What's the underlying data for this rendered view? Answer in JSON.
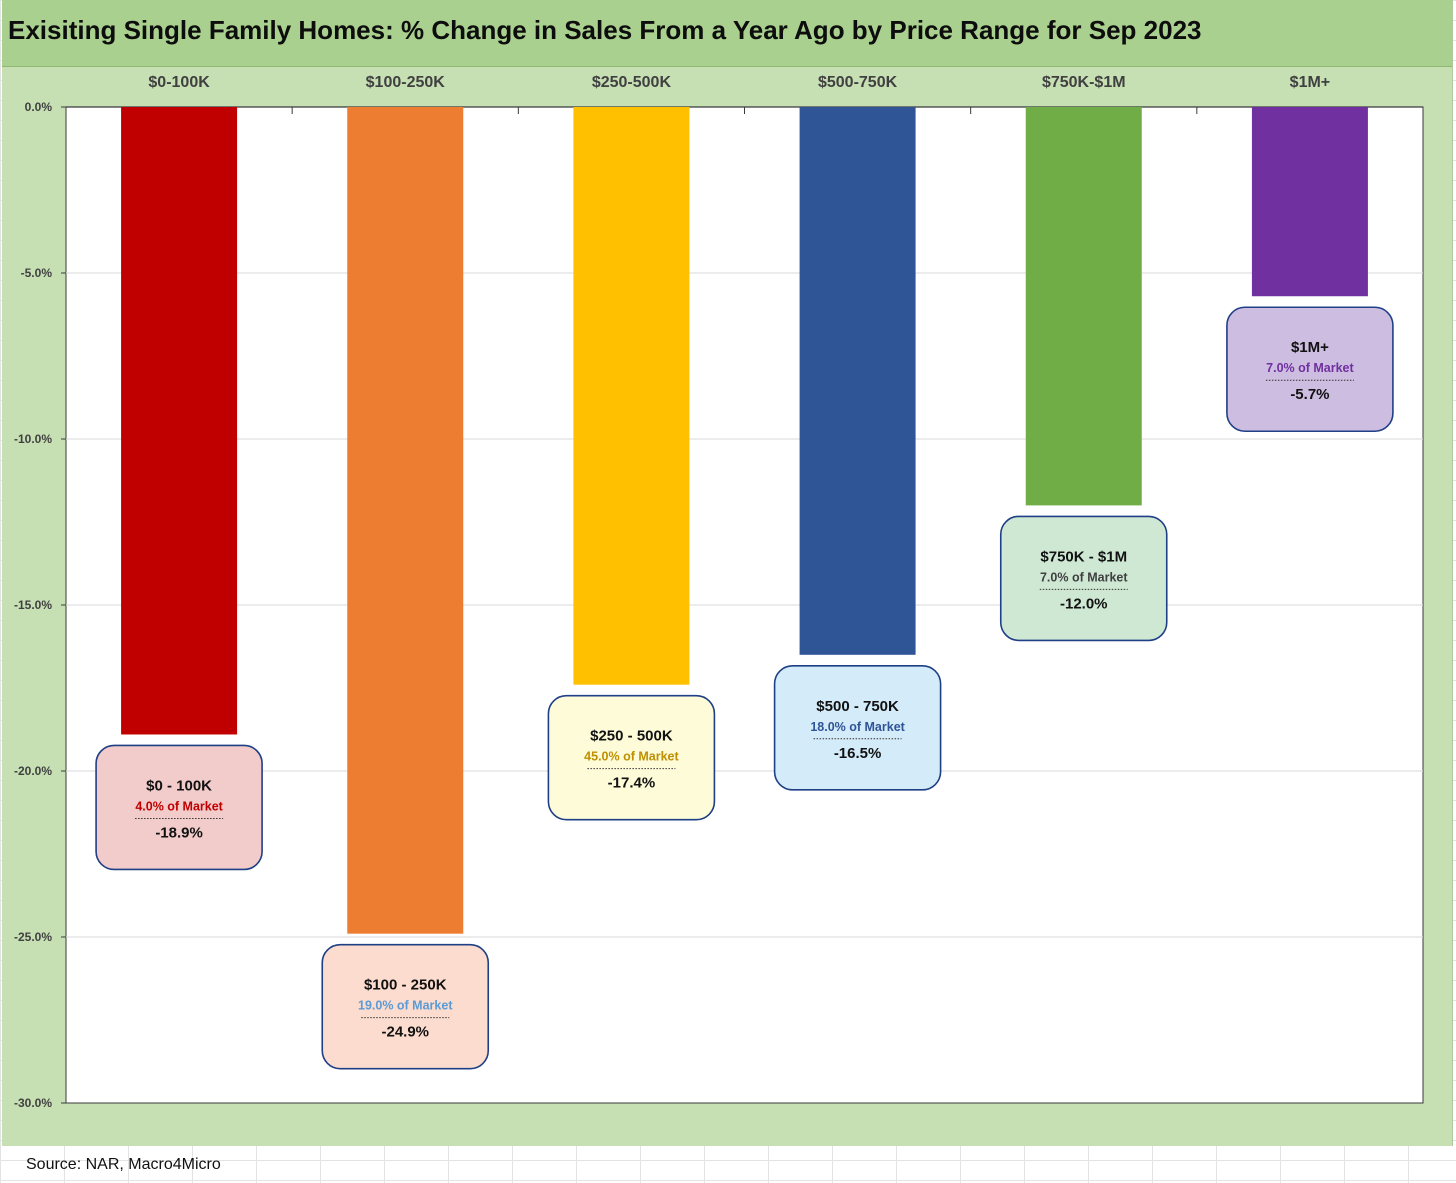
{
  "chart_title": "Exisiting Single Family Homes: % Change in Sales From a Year Ago by Price Range for Sep 2023",
  "source": "Source: NAR, Macro4Micro",
  "chart_data": {
    "type": "bar",
    "title": "Exisiting Single Family Homes: % Change in Sales From a Year Ago by Price Range for Sep 2023",
    "categories": [
      "$0-100K",
      "$100-250K",
      "$250-500K",
      "$500-750K",
      "$750K-$1M",
      "$1M+"
    ],
    "values": [
      -18.9,
      -24.9,
      -17.4,
      -16.5,
      -12.0,
      -5.7
    ],
    "ylim": [
      -30,
      0
    ],
    "yticks": [
      0,
      -5,
      -10,
      -15,
      -20,
      -25,
      -30
    ],
    "ytick_labels": [
      "0.0%",
      "-5.0%",
      "-10.0%",
      "-15.0%",
      "-20.0%",
      "-25.0%",
      "-30.0%"
    ],
    "grid": true,
    "bar_colors": [
      "#c00000",
      "#ed7d31",
      "#ffc000",
      "#2f5597",
      "#70ad47",
      "#7030a0"
    ],
    "annotations": [
      {
        "title": "$0 - 100K",
        "share": "4.0% of Market",
        "value": "-18.9%",
        "fill": "#f2cbcb",
        "share_color": "#c00000"
      },
      {
        "title": "$100 - 250K",
        "share": "19.0% of Market",
        "value": "-24.9%",
        "fill": "#fbdcce",
        "share_color": "#5b9bd5"
      },
      {
        "title": "$250 - 500K",
        "share": "45.0% of Market",
        "value": "-17.4%",
        "fill": "#fefbd9",
        "share_color": "#bf9000"
      },
      {
        "title": "$500 - 750K",
        "share": "18.0% of Market",
        "value": "-16.5%",
        "fill": "#d4ebf9",
        "share_color": "#2f5597"
      },
      {
        "title": "$750K - $1M",
        "share": "7.0% of Market",
        "value": "-12.0%",
        "fill": "#cfe8d4",
        "share_color": "#404040"
      },
      {
        "title": "$1M+",
        "share": "7.0% of Market",
        "value": "-5.7%",
        "fill": "#cdbde0",
        "share_color": "#7030a0"
      }
    ]
  }
}
